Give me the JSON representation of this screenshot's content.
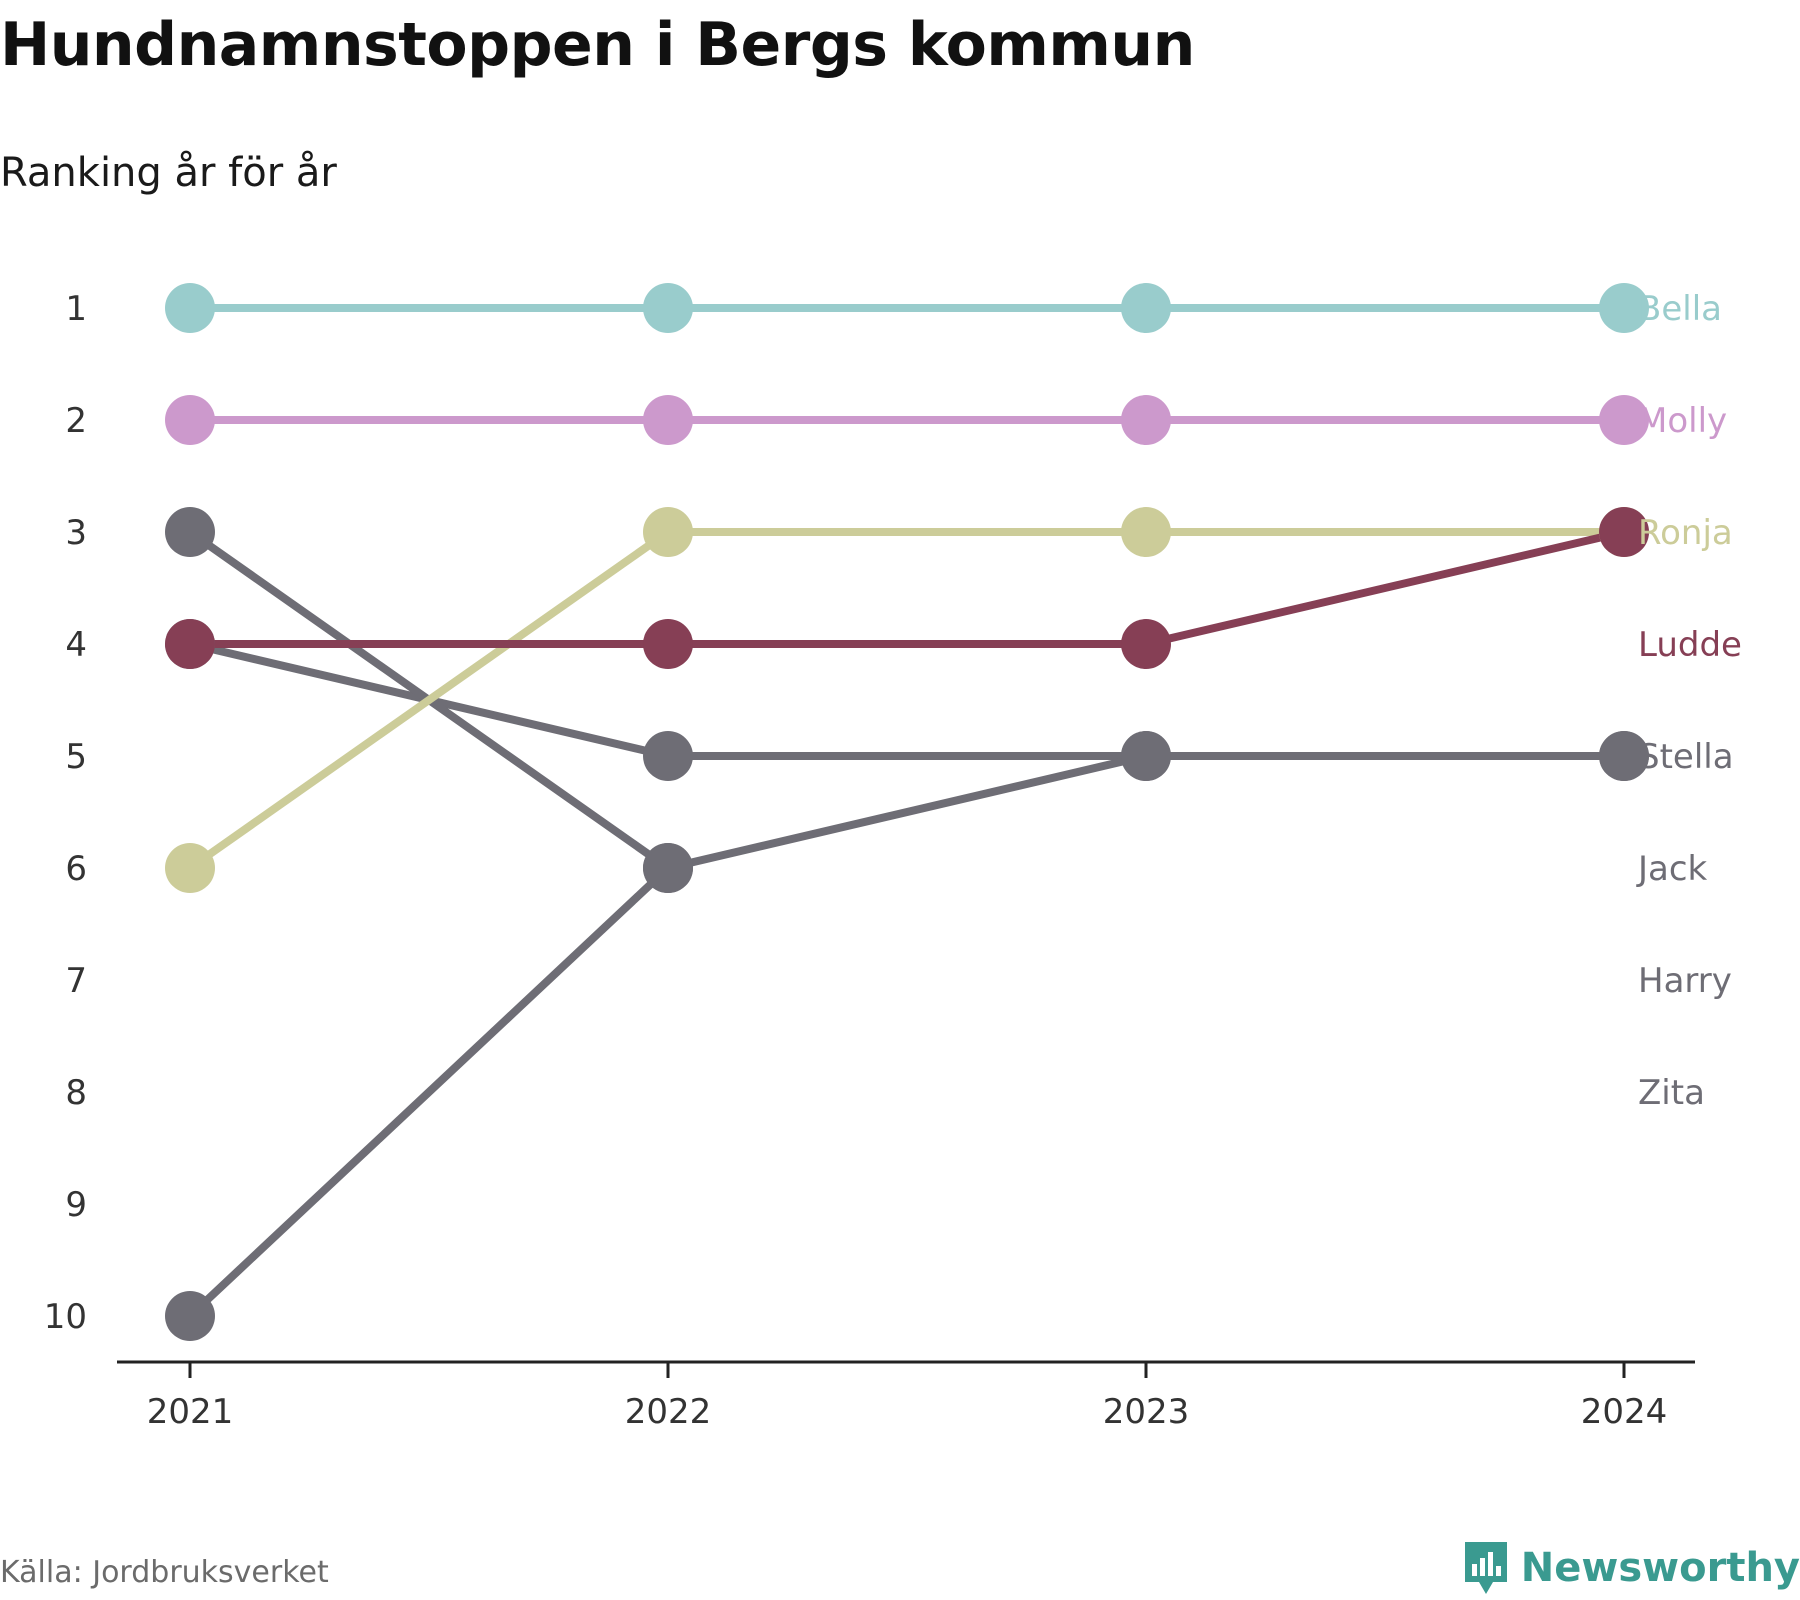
{
  "header": {
    "title": "Hundnamnstoppen i Bergs kommun",
    "subtitle": "Ranking år för år"
  },
  "footer": {
    "source": "Källa: Jordbruksverket",
    "brand": "Newsworthy"
  },
  "colors": {
    "axis": "#222222",
    "tick_text": "#333333",
    "grey_series": "#6e6d75",
    "brand": "#3a9a90"
  },
  "chart_data": {
    "type": "line",
    "title": "Hundnamnstoppen i Bergs kommun",
    "subtitle": "Ranking år för år",
    "x": [
      "2021",
      "2022",
      "2023",
      "2024"
    ],
    "yticks": [
      "1",
      "2",
      "3",
      "4",
      "5",
      "6",
      "7",
      "8",
      "9",
      "10"
    ],
    "ylim": [
      1,
      10
    ],
    "y_inverted": true,
    "grid": false,
    "legend": "direct-labels-right",
    "series": [
      {
        "name": "Bella",
        "color": "#99cccc",
        "values": [
          1,
          1,
          1,
          1
        ]
      },
      {
        "name": "Molly",
        "color": "#cc99cc",
        "values": [
          2,
          2,
          2,
          2
        ]
      },
      {
        "name": "Ronja",
        "color": "#cccc99",
        "values": [
          6,
          3,
          3,
          3
        ]
      },
      {
        "name": "Ludde",
        "color": "#863f55",
        "values": [
          4,
          4,
          4,
          3
        ]
      },
      {
        "name": "Stella",
        "color": "#6e6d75",
        "values": [
          4,
          5,
          5,
          5
        ]
      },
      {
        "name": "Jack",
        "color": "#6e6d75",
        "values": [
          3,
          6,
          null,
          null
        ]
      },
      {
        "name": "Harry",
        "color": "#6e6d75",
        "values": [
          10,
          6,
          5,
          5
        ]
      },
      {
        "name": "Zita",
        "color": "#6e6d75",
        "values": [
          null,
          null,
          null,
          null
        ]
      }
    ]
  }
}
